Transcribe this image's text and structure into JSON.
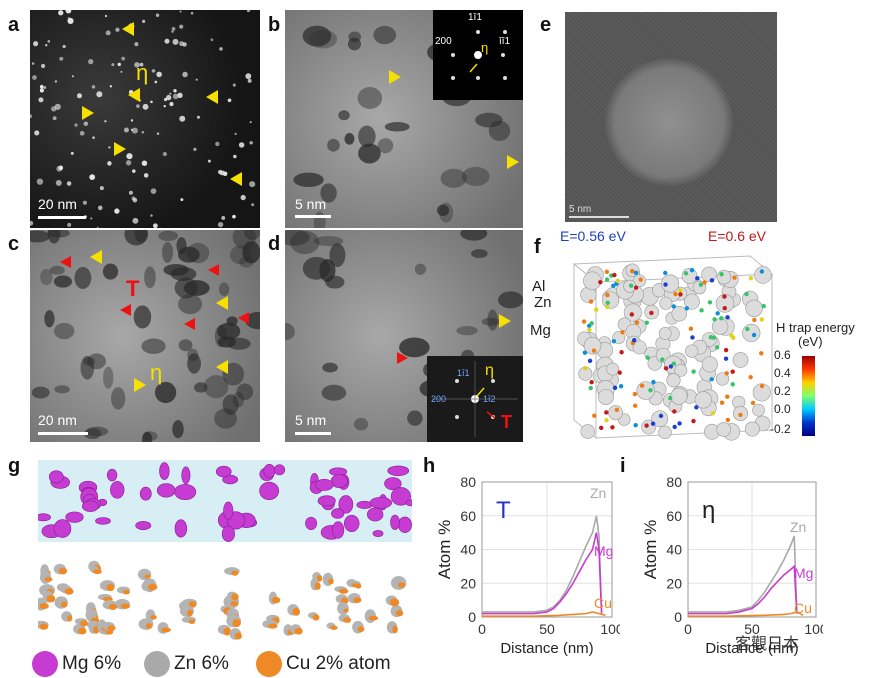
{
  "panels": {
    "a": {
      "label": "a",
      "scale": "20 nm",
      "phase": "η"
    },
    "b": {
      "label": "b",
      "scale": "5 nm",
      "phase": "η",
      "inset": {
        "refl1": "200",
        "refl2": "1ī1",
        "refl3": "īī1"
      }
    },
    "c": {
      "label": "c",
      "scale": "20 nm",
      "phase_eta": "η",
      "phase_t": "T"
    },
    "d": {
      "label": "d",
      "scale": "5 nm",
      "phase_eta": "η",
      "phase_t": "T",
      "inset": {
        "refl1": "200",
        "refl2": "1ī1",
        "refl3": "1ī2"
      }
    },
    "e": {
      "label": "e",
      "scale": "5 nm"
    },
    "f": {
      "label": "f",
      "energy_left": "E=0.56 eV",
      "energy_right": "E=0.6 eV",
      "atom_al": "Al",
      "atom_zn": "Zn",
      "atom_mg": "Mg",
      "colorbar_title": "H trap energy",
      "colorbar_unit": "(eV)",
      "colorbar_ticks": [
        "0.6",
        "0.4",
        "0.2",
        "0.0",
        "-0.2"
      ]
    },
    "g": {
      "label": "g"
    }
  },
  "legend": [
    {
      "name": "Mg 6%",
      "color": "#c63bd1"
    },
    {
      "name": "Zn 6%",
      "color": "#a9a9a9"
    },
    {
      "name": "Cu 2% atom",
      "color": "#ee8a25"
    }
  ],
  "chart_data": [
    {
      "panel": "h",
      "type": "line",
      "title": "T",
      "xlabel": "Distance (nm)",
      "ylabel": "Atom %",
      "xlim": [
        0,
        100
      ],
      "ylim": [
        0,
        80
      ],
      "xticks": [
        "0",
        "50",
        "100"
      ],
      "yticks": [
        "0",
        "20",
        "40",
        "60",
        "80"
      ],
      "series": [
        {
          "name": "Zn",
          "color": "#a9a9a9",
          "x": [
            0,
            10,
            20,
            30,
            40,
            50,
            55,
            60,
            65,
            70,
            75,
            80,
            85,
            88,
            90,
            92
          ],
          "y": [
            3,
            3,
            3,
            3,
            3,
            4,
            6,
            10,
            16,
            24,
            33,
            42,
            50,
            60,
            48,
            3
          ]
        },
        {
          "name": "Mg",
          "color": "#c63bd1",
          "x": [
            0,
            10,
            20,
            30,
            40,
            50,
            55,
            60,
            65,
            70,
            75,
            80,
            85,
            88,
            90,
            92
          ],
          "y": [
            2,
            2,
            2,
            2,
            2,
            3,
            5,
            9,
            14,
            20,
            27,
            34,
            40,
            50,
            40,
            2
          ]
        },
        {
          "name": "Cu",
          "color": "#ee8a25",
          "x": [
            0,
            20,
            40,
            60,
            70,
            80,
            85,
            90,
            95
          ],
          "y": [
            0.5,
            0.5,
            0.5,
            1,
            1.5,
            2,
            3,
            2,
            1
          ]
        }
      ]
    },
    {
      "panel": "i",
      "type": "line",
      "title": "η",
      "xlabel": "Distance (nm)",
      "ylabel": "Atom %",
      "xlim": [
        0,
        100
      ],
      "ylim": [
        0,
        80
      ],
      "xticks": [
        "0",
        "50",
        "100"
      ],
      "yticks": [
        "0",
        "20",
        "40",
        "60",
        "80"
      ],
      "series": [
        {
          "name": "Zn",
          "color": "#a9a9a9",
          "x": [
            0,
            10,
            20,
            30,
            40,
            50,
            55,
            60,
            65,
            70,
            75,
            80,
            83,
            85
          ],
          "y": [
            3,
            3,
            3,
            3,
            4,
            6,
            10,
            15,
            21,
            27,
            34,
            42,
            48,
            3
          ]
        },
        {
          "name": "Mg",
          "color": "#c63bd1",
          "x": [
            0,
            10,
            20,
            30,
            40,
            50,
            55,
            60,
            65,
            70,
            75,
            80,
            83,
            85
          ],
          "y": [
            2,
            2,
            2,
            2,
            3,
            5,
            8,
            12,
            17,
            21,
            25,
            28,
            30,
            2
          ]
        },
        {
          "name": "Cu",
          "color": "#ee8a25",
          "x": [
            0,
            30,
            60,
            75,
            80,
            85,
            90
          ],
          "y": [
            0.5,
            0.5,
            1,
            1.5,
            2,
            3,
            1
          ]
        }
      ]
    }
  ],
  "watermark": "客觀日本"
}
